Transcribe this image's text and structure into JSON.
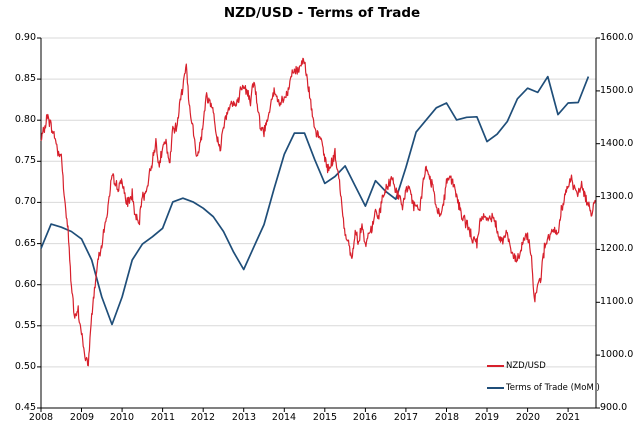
{
  "chart_data": {
    "type": "line",
    "title": "NZD/USD - Terms of Trade",
    "x_axis": {
      "tick_years": [
        "2008",
        "2009",
        "2010",
        "2011",
        "2012",
        "2013",
        "2014",
        "2015",
        "2016",
        "2017",
        "2018",
        "2019",
        "2020",
        "2021"
      ],
      "range": [
        2008.0,
        2021.7
      ]
    },
    "y_left": {
      "ticks": [
        "0.90",
        "0.85",
        "0.80",
        "0.75",
        "0.70",
        "0.65",
        "0.60",
        "0.55",
        "0.50",
        "0.45"
      ],
      "range": [
        0.45,
        0.9
      ],
      "tick_step": 0.05
    },
    "y_right": {
      "ticks": [
        "1600.0",
        "1500.0",
        "1400.0",
        "1300.0",
        "1200.0",
        "1100.0",
        "1000.0",
        "900.0"
      ],
      "range": [
        900.0,
        1600.0
      ],
      "tick_step": 100
    },
    "grid": "horizontal",
    "grid_color": "#D9D9D9",
    "axis_color": "#000000",
    "background": "#FFFFFF",
    "legend": {
      "position": "inside-bottom-right"
    },
    "series": [
      {
        "name": "NZD/USD",
        "axis": "left",
        "color": "#D7202C",
        "frequency": "monthly",
        "x_start": 2008.0,
        "x_step": 0.0833333,
        "values": [
          0.775,
          0.79,
          0.806,
          0.792,
          0.781,
          0.762,
          0.757,
          0.703,
          0.667,
          0.598,
          0.557,
          0.568,
          0.541,
          0.512,
          0.503,
          0.563,
          0.601,
          0.636,
          0.649,
          0.674,
          0.699,
          0.731,
          0.723,
          0.717,
          0.73,
          0.7,
          0.702,
          0.71,
          0.681,
          0.672,
          0.708,
          0.712,
          0.731,
          0.752,
          0.774,
          0.747,
          0.765,
          0.774,
          0.744,
          0.789,
          0.792,
          0.816,
          0.843,
          0.866,
          0.812,
          0.792,
          0.757,
          0.768,
          0.796,
          0.831,
          0.82,
          0.816,
          0.779,
          0.764,
          0.794,
          0.809,
          0.821,
          0.819,
          0.819,
          0.834,
          0.839,
          0.836,
          0.824,
          0.851,
          0.818,
          0.789,
          0.786,
          0.801,
          0.822,
          0.834,
          0.824,
          0.82,
          0.826,
          0.831,
          0.854,
          0.861,
          0.859,
          0.869,
          0.876,
          0.845,
          0.814,
          0.786,
          0.781,
          0.776,
          0.754,
          0.741,
          0.747,
          0.759,
          0.734,
          0.699,
          0.662,
          0.651,
          0.631,
          0.664,
          0.654,
          0.674,
          0.646,
          0.661,
          0.669,
          0.69,
          0.679,
          0.706,
          0.714,
          0.721,
          0.731,
          0.714,
          0.706,
          0.694,
          0.716,
          0.72,
          0.699,
          0.691,
          0.69,
          0.722,
          0.741,
          0.731,
          0.719,
          0.694,
          0.686,
          0.695,
          0.726,
          0.731,
          0.721,
          0.709,
          0.691,
          0.679,
          0.676,
          0.661,
          0.656,
          0.649,
          0.676,
          0.686,
          0.676,
          0.684,
          0.681,
          0.669,
          0.654,
          0.656,
          0.664,
          0.644,
          0.631,
          0.629,
          0.641,
          0.656,
          0.659,
          0.639,
          0.583,
          0.601,
          0.611,
          0.645,
          0.656,
          0.661,
          0.664,
          0.661,
          0.691,
          0.709,
          0.719,
          0.729,
          0.714,
          0.711,
          0.721,
          0.709,
          0.696,
          0.689,
          0.703
        ]
      },
      {
        "name": "Terms of Trade (MoM )",
        "axis": "right",
        "color": "#1F4E79",
        "frequency": "quarterly",
        "x_start": 2008.0,
        "x_step": 0.25,
        "values": [
          1202,
          1248,
          1242,
          1234,
          1220,
          1180,
          1110,
          1058,
          1110,
          1180,
          1210,
          1224,
          1240,
          1290,
          1297,
          1290,
          1278,
          1262,
          1234,
          1195,
          1162,
          1205,
          1247,
          1315,
          1380,
          1420,
          1420,
          1370,
          1325,
          1338,
          1358,
          1320,
          1282,
          1330,
          1310,
          1295,
          1355,
          1422,
          1445,
          1468,
          1477,
          1445,
          1450,
          1451,
          1404,
          1418,
          1442,
          1485,
          1505,
          1497,
          1527,
          1455,
          1477,
          1478,
          1527
        ]
      }
    ],
    "render_hints": {
      "noise_amplitude": 0.008,
      "noise_substeps": 6,
      "nzdusd_linewidth": 1.2,
      "tot_linewidth": 1.7
    }
  }
}
